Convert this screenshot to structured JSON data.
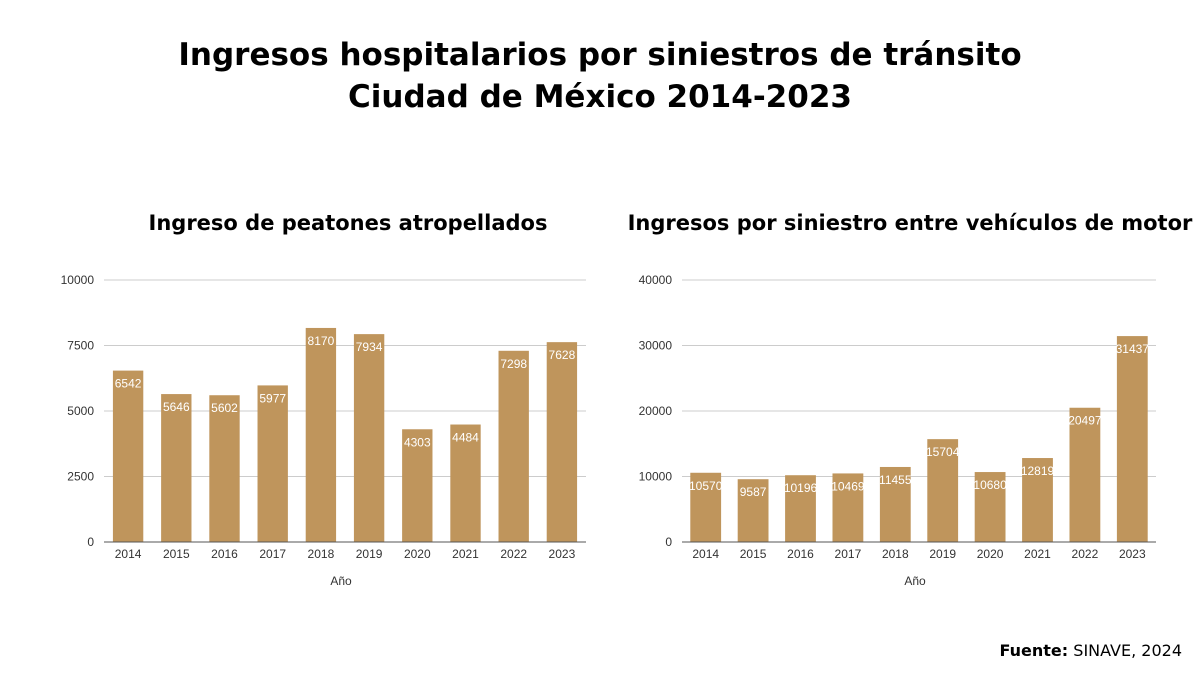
{
  "header": {
    "title_line1": "Ingresos hospitalarios por siniestros de tránsito",
    "title_line2": "Ciudad de México 2014-2023"
  },
  "colors": {
    "bar": "#BF955C",
    "grid": "#CCCCCC",
    "label": "#FFFFFF",
    "axis_text": "#333333"
  },
  "source": {
    "label": "Fuente:",
    "text": "SINAVE, 2024"
  },
  "chart_data": [
    {
      "type": "bar",
      "title": "Ingreso de peatones atropellados",
      "xlabel": "Año",
      "ylabel": "",
      "categories": [
        "2014",
        "2015",
        "2016",
        "2017",
        "2018",
        "2019",
        "2020",
        "2021",
        "2022",
        "2023"
      ],
      "values": [
        6542,
        5646,
        5602,
        5977,
        8170,
        7934,
        4303,
        4484,
        7298,
        7628
      ],
      "ylim": [
        0,
        10000
      ],
      "yticks": [
        0,
        2500,
        5000,
        7500,
        10000
      ],
      "grid": true,
      "legend": "none"
    },
    {
      "type": "bar",
      "title": "Ingresos por siniestro entre vehículos de motor",
      "xlabel": "Año",
      "ylabel": "",
      "categories": [
        "2014",
        "2015",
        "2016",
        "2017",
        "2018",
        "2019",
        "2020",
        "2021",
        "2022",
        "2023"
      ],
      "values": [
        10570,
        9587,
        10196,
        10469,
        11455,
        15704,
        10680,
        12819,
        20497,
        31437
      ],
      "ylim": [
        0,
        40000
      ],
      "yticks": [
        0,
        10000,
        20000,
        30000,
        40000
      ],
      "grid": true,
      "legend": "none"
    }
  ]
}
